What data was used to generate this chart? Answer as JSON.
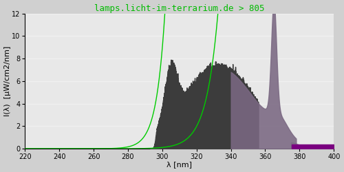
{
  "title": "lamps.licht-im-terrarium.de > 805",
  "xlabel": "λ [nm]",
  "ylabel": "I(λ)  [μW/cm2/nm]",
  "xlim": [
    220,
    400
  ],
  "ylim": [
    0,
    12
  ],
  "yticks": [
    0,
    2,
    4,
    6,
    8,
    10,
    12
  ],
  "xticks": [
    220,
    240,
    260,
    280,
    300,
    320,
    340,
    360,
    380,
    400
  ],
  "plot_bg": "#e8e8e8",
  "fig_bg": "#d0d0d0",
  "grid_color": "#f0f0f0",
  "title_color": "#00bb00",
  "title_fontsize": 9,
  "axis_fontsize": 8,
  "tick_fontsize": 7,
  "dark_gray": "#3c3c3c",
  "purple_mauve": "#7a6882",
  "bright_purple": "#7a0080",
  "green_color": "#00cc00"
}
